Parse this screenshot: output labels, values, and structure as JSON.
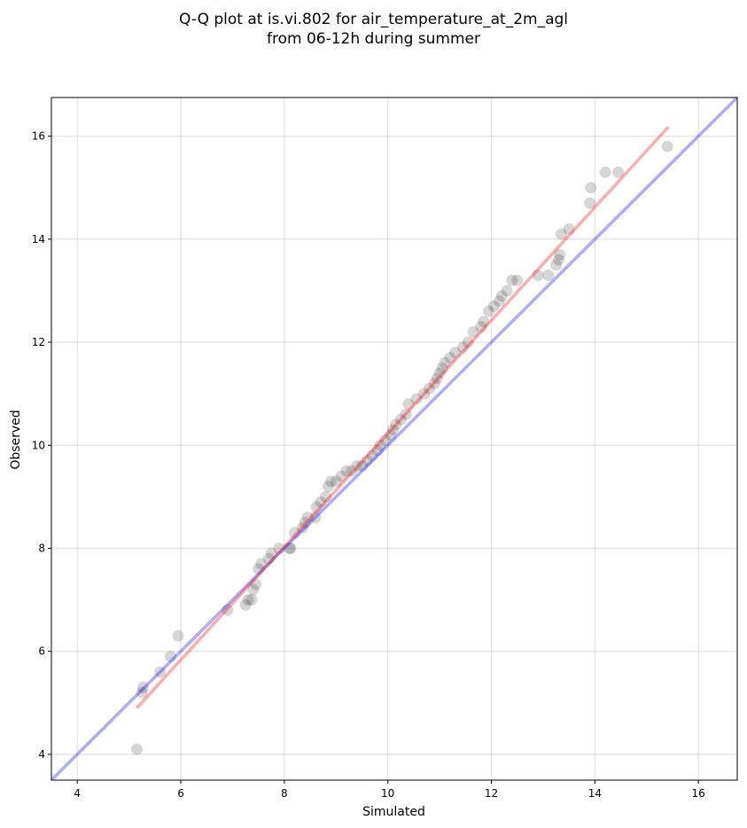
{
  "chart_data": {
    "type": "scatter",
    "title_lines": [
      "Q-Q plot at is.vi.802 for air_temperature_at_2m_agl",
      "from 06-12h during summer"
    ],
    "xlabel": "Simulated",
    "ylabel": "Observed",
    "xlim": [
      3.5,
      16.75
    ],
    "ylim": [
      3.5,
      16.75
    ],
    "xticks": [
      4,
      6,
      8,
      10,
      12,
      14,
      16
    ],
    "yticks": [
      4,
      6,
      8,
      10,
      12,
      14,
      16
    ],
    "grid": true,
    "colors": {
      "points": "#000000",
      "identity_line": "#0000ff",
      "fit_line": "#ff0000"
    },
    "identity_line": {
      "x": [
        3.5,
        16.75
      ],
      "y": [
        3.5,
        16.75
      ]
    },
    "fit_line": {
      "x": [
        5.15,
        15.42
      ],
      "y": [
        4.9,
        16.18
      ]
    },
    "points": [
      [
        5.15,
        4.1
      ],
      [
        5.25,
        5.2
      ],
      [
        5.27,
        5.3
      ],
      [
        5.6,
        5.6
      ],
      [
        5.8,
        5.9
      ],
      [
        5.95,
        6.3
      ],
      [
        6.9,
        6.8
      ],
      [
        7.25,
        6.9
      ],
      [
        7.3,
        7.0
      ],
      [
        7.37,
        7.0
      ],
      [
        7.4,
        7.2
      ],
      [
        7.45,
        7.3
      ],
      [
        7.5,
        7.6
      ],
      [
        7.55,
        7.7
      ],
      [
        7.7,
        7.8
      ],
      [
        7.75,
        7.9
      ],
      [
        7.9,
        8.0
      ],
      [
        8.1,
        8.0
      ],
      [
        8.12,
        8.0
      ],
      [
        8.2,
        8.3
      ],
      [
        8.35,
        8.4
      ],
      [
        8.4,
        8.5
      ],
      [
        8.45,
        8.6
      ],
      [
        8.6,
        8.6
      ],
      [
        8.62,
        8.8
      ],
      [
        8.7,
        8.9
      ],
      [
        8.8,
        9.0
      ],
      [
        8.85,
        9.2
      ],
      [
        8.9,
        9.3
      ],
      [
        9.0,
        9.3
      ],
      [
        9.1,
        9.4
      ],
      [
        9.2,
        9.5
      ],
      [
        9.3,
        9.5
      ],
      [
        9.4,
        9.6
      ],
      [
        9.5,
        9.6
      ],
      [
        9.6,
        9.7
      ],
      [
        9.7,
        9.8
      ],
      [
        9.8,
        9.9
      ],
      [
        9.85,
        10.0
      ],
      [
        9.95,
        10.1
      ],
      [
        10.05,
        10.2
      ],
      [
        10.1,
        10.3
      ],
      [
        10.15,
        10.4
      ],
      [
        10.25,
        10.5
      ],
      [
        10.35,
        10.6
      ],
      [
        10.4,
        10.8
      ],
      [
        10.55,
        10.9
      ],
      [
        10.7,
        11.0
      ],
      [
        10.8,
        11.1
      ],
      [
        10.9,
        11.2
      ],
      [
        10.95,
        11.3
      ],
      [
        11.0,
        11.4
      ],
      [
        11.05,
        11.5
      ],
      [
        11.1,
        11.6
      ],
      [
        11.2,
        11.7
      ],
      [
        11.3,
        11.8
      ],
      [
        11.45,
        11.9
      ],
      [
        11.55,
        12.0
      ],
      [
        11.65,
        12.2
      ],
      [
        11.8,
        12.3
      ],
      [
        11.85,
        12.4
      ],
      [
        11.95,
        12.6
      ],
      [
        12.05,
        12.7
      ],
      [
        12.15,
        12.8
      ],
      [
        12.2,
        12.9
      ],
      [
        12.3,
        13.0
      ],
      [
        12.4,
        13.2
      ],
      [
        12.5,
        13.2
      ],
      [
        12.9,
        13.3
      ],
      [
        13.1,
        13.3
      ],
      [
        13.25,
        13.5
      ],
      [
        13.3,
        13.6
      ],
      [
        13.32,
        13.7
      ],
      [
        13.35,
        14.1
      ],
      [
        13.5,
        14.2
      ],
      [
        13.9,
        14.7
      ],
      [
        13.92,
        15.0
      ],
      [
        14.2,
        15.3
      ],
      [
        14.45,
        15.3
      ],
      [
        15.4,
        15.8
      ]
    ]
  }
}
